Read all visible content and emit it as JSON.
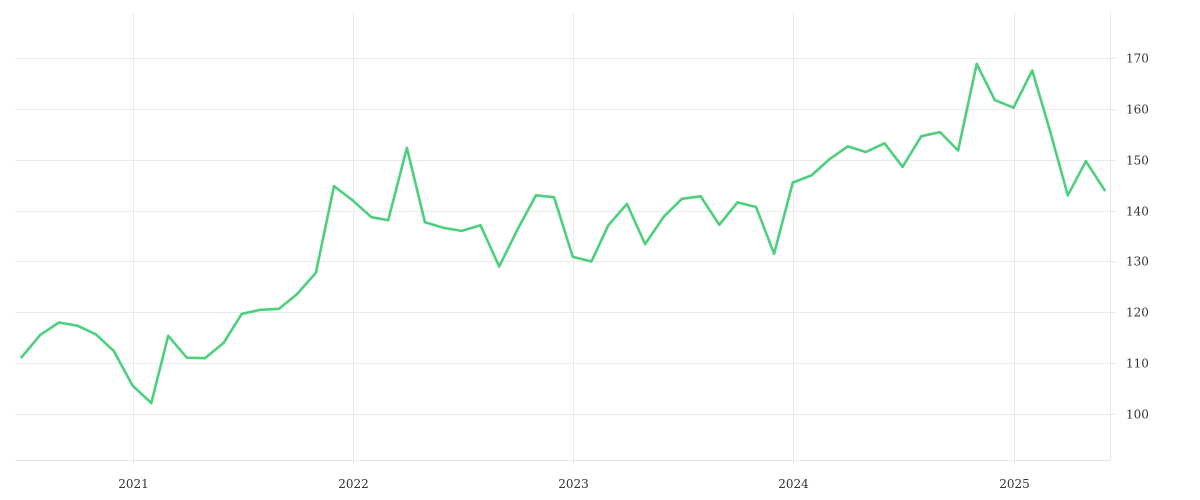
{
  "chart_data": {
    "type": "line",
    "title": "",
    "xlabel": "",
    "ylabel": "",
    "x_axis": {
      "type": "date",
      "range": [
        "2020-06-20",
        "2025-06-10"
      ],
      "ticks": [
        {
          "value": "2021-01-01",
          "label": "2021"
        },
        {
          "value": "2022-01-01",
          "label": "2022"
        },
        {
          "value": "2023-01-01",
          "label": "2023"
        },
        {
          "value": "2024-01-01",
          "label": "2024"
        },
        {
          "value": "2025-01-01",
          "label": "2025"
        }
      ]
    },
    "y_axis": {
      "position": "right",
      "range": [
        91,
        179
      ],
      "ticks": [
        100,
        110,
        120,
        130,
        140,
        150,
        160,
        170
      ]
    },
    "grid": true,
    "legend": "none",
    "series": [
      {
        "color": "#4cd07d",
        "x": [
          "2020-07-01",
          "2020-08-01",
          "2020-09-01",
          "2020-10-01",
          "2020-11-01",
          "2020-12-01",
          "2021-01-01",
          "2021-02-01",
          "2021-03-01",
          "2021-04-01",
          "2021-05-01",
          "2021-06-01",
          "2021-07-01",
          "2021-08-01",
          "2021-09-01",
          "2021-10-01",
          "2021-11-01",
          "2021-12-01",
          "2022-01-01",
          "2022-02-01",
          "2022-03-01",
          "2022-04-01",
          "2022-05-01",
          "2022-06-01",
          "2022-07-01",
          "2022-08-01",
          "2022-09-01",
          "2022-10-01",
          "2022-11-01",
          "2022-12-01",
          "2023-01-01",
          "2023-02-01",
          "2023-03-01",
          "2023-04-01",
          "2023-05-01",
          "2023-06-01",
          "2023-07-01",
          "2023-08-01",
          "2023-09-01",
          "2023-10-01",
          "2023-11-01",
          "2023-12-01",
          "2024-01-01",
          "2024-02-01",
          "2024-03-01",
          "2024-04-01",
          "2024-05-01",
          "2024-06-01",
          "2024-07-01",
          "2024-08-01",
          "2024-09-01",
          "2024-10-01",
          "2024-11-01",
          "2024-12-01",
          "2025-01-01",
          "2025-02-01",
          "2025-03-01",
          "2025-04-01",
          "2025-05-01",
          "2025-06-01"
        ],
        "values": [
          111.2,
          115.6,
          118.0,
          117.4,
          115.7,
          112.4,
          105.6,
          102.2,
          115.4,
          111.1,
          111.0,
          114.0,
          119.7,
          120.5,
          120.7,
          123.6,
          127.8,
          144.8,
          142.0,
          138.7,
          138.1,
          152.3,
          137.7,
          136.6,
          136.0,
          137.1,
          129.0,
          136.2,
          143.0,
          142.6,
          130.9,
          130.0,
          137.1,
          141.3,
          133.4,
          138.8,
          142.3,
          142.8,
          137.2,
          141.6,
          140.7,
          131.5,
          145.5,
          146.9,
          150.0,
          152.6,
          151.5,
          153.2,
          148.6,
          154.6,
          155.4,
          151.8,
          168.8,
          161.7,
          160.2,
          167.5,
          156.3,
          143.0,
          149.7,
          144.0
        ]
      }
    ]
  }
}
